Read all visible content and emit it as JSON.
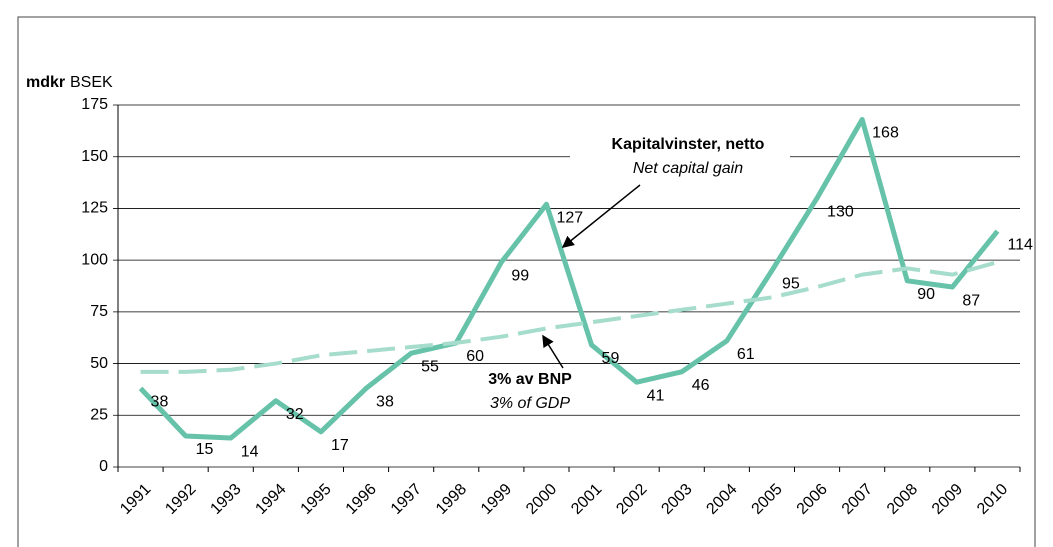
{
  "chart_data": {
    "type": "line",
    "y_unit_label": "mdkr",
    "y_unit_label_en": "BSEK",
    "categories": [
      "1991",
      "1992",
      "1993",
      "1994",
      "1995",
      "1996",
      "1997",
      "1998",
      "1999",
      "2000",
      "2001",
      "2002",
      "2003",
      "2004",
      "2005",
      "2006",
      "2007",
      "2008",
      "2009",
      "2010"
    ],
    "series": [
      {
        "name": "Kapitalvinster, netto",
        "name_en": "Net capital gain",
        "color": "#66c2a8",
        "dashed": false,
        "labels": true,
        "values": [
          38,
          15,
          14,
          32,
          17,
          38,
          55,
          60,
          99,
          127,
          59,
          41,
          46,
          61,
          95,
          130,
          168,
          90,
          87,
          114
        ]
      },
      {
        "name": "3% av BNP",
        "name_en": "3% of GDP",
        "color": "#a6dccb",
        "dashed": true,
        "labels": false,
        "values": [
          46,
          46,
          47,
          50,
          54,
          56,
          58,
          60,
          63,
          67,
          70,
          73,
          76,
          79,
          82,
          87,
          93,
          96,
          93,
          99
        ]
      }
    ],
    "ylim": [
      0,
      175
    ],
    "yticks": [
      0,
      25,
      50,
      75,
      100,
      125,
      150,
      175
    ],
    "grid": true
  }
}
